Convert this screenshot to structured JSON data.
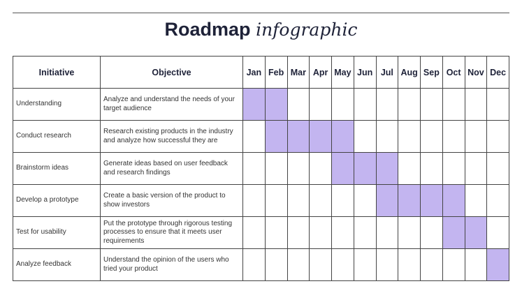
{
  "title": {
    "bold": "Roadmap",
    "italic": "infographic"
  },
  "headers": {
    "initiative": "Initiative",
    "objective": "Objective"
  },
  "months": [
    "Jan",
    "Feb",
    "Mar",
    "Apr",
    "May",
    "Jun",
    "Jul",
    "Aug",
    "Sep",
    "Oct",
    "Nov",
    "Dec"
  ],
  "fill_color": "#c3b5f0",
  "rows": [
    {
      "initiative": "Understanding",
      "objective": "Analyze and understand the needs of your target audience",
      "start": "Jan",
      "end": "Feb"
    },
    {
      "initiative": "Conduct research",
      "objective": "Research existing products in the industry and analyze how successful they are",
      "start": "Feb",
      "end": "May"
    },
    {
      "initiative": "Brainstorm ideas",
      "objective": "Generate ideas based on user feedback and research findings",
      "start": "May",
      "end": "Jul"
    },
    {
      "initiative": "Develop a prototype",
      "objective": "Create a basic version of the product to show investors",
      "start": "Jul",
      "end": "Oct"
    },
    {
      "initiative": "Test for usability",
      "objective": "Put the prototype through rigorous testing processes to ensure that it meets user requirements",
      "start": "Oct",
      "end": "Nov"
    },
    {
      "initiative": "Analyze feedback",
      "objective": "Understand the opinion of the users who tried your product",
      "start": "Dec",
      "end": "Dec"
    }
  ]
}
